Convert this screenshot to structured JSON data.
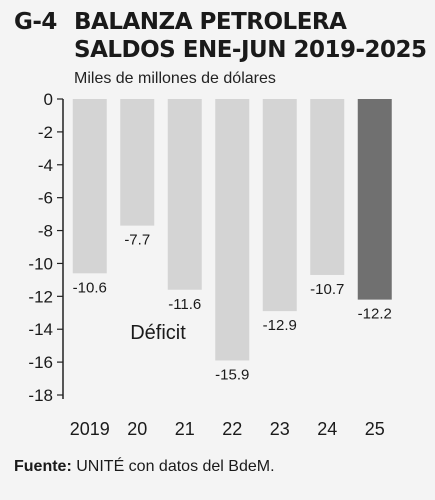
{
  "header": {
    "number": "G-4",
    "title_line1": "BALANZA PETROLERA",
    "title_line2": "SALDOS ENE-JUN 2019-2025",
    "subtitle": "Miles de millones de dólares"
  },
  "annotation": "Déficit",
  "footer": {
    "source_label": "Fuente:",
    "source_text": "UNITÉ con datos del BdeM."
  },
  "colors": {
    "bar": "#d4d4d4",
    "highlight_bar": "#707070",
    "axis": "#222222"
  },
  "chart_data": {
    "type": "bar",
    "title": "BALANZA PETROLERA SALDOS ENE-JUN 2019-2025",
    "subtitle": "Miles de millones de dólares",
    "categories": [
      "2019",
      "20",
      "21",
      "22",
      "23",
      "24",
      "25"
    ],
    "values": [
      -10.6,
      -7.7,
      -11.6,
      -15.9,
      -12.9,
      -10.7,
      -12.2
    ],
    "value_labels": [
      "-10.6",
      "-7.7",
      "-11.6",
      "-15.9",
      "-12.9",
      "-10.7",
      "-12.2"
    ],
    "highlight_index": 6,
    "ylim": [
      -18,
      0
    ],
    "yticks": [
      0,
      -2,
      -4,
      -6,
      -8,
      -10,
      -12,
      -14,
      -16,
      -18
    ],
    "ytick_labels": [
      "0",
      "-2",
      "-4",
      "-6",
      "-8",
      "-10",
      "-12",
      "-14",
      "-16",
      "-18"
    ],
    "grid": false,
    "legend": "none"
  }
}
